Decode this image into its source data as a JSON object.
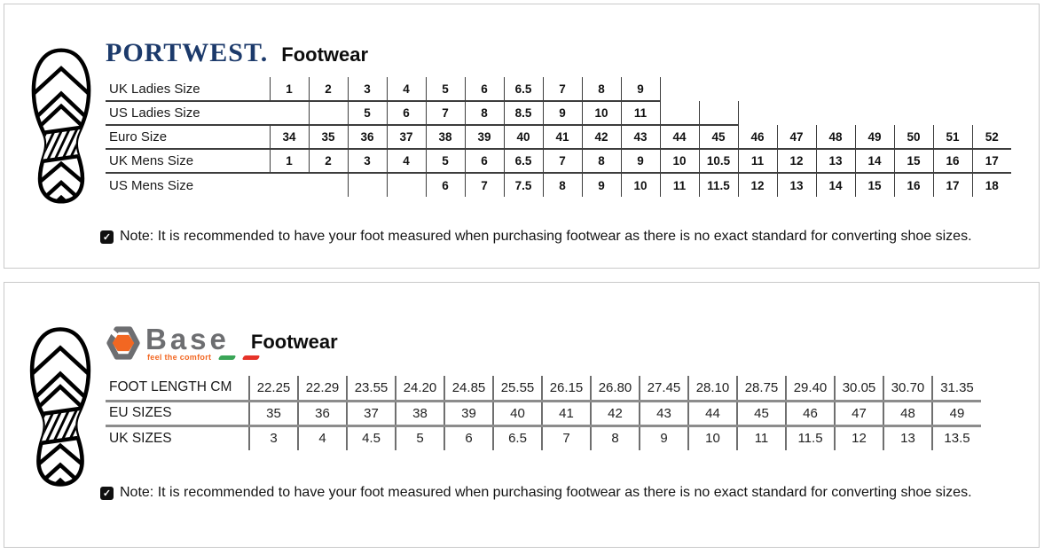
{
  "panels": [
    {
      "id": "portwest",
      "brand": "PORTWEST.",
      "product_line": "Footwear",
      "brand_color": "#1c3a6b",
      "note": "Note: It is recommended to have your foot measured when purchasing footwear as there is no exact standard for converting shoe sizes.",
      "table": {
        "columns": 19,
        "rows": [
          {
            "label": "UK Ladies Size",
            "cells": [
              "1",
              "2",
              "3",
              "4",
              "5",
              "6",
              "6.5",
              "7",
              "8",
              "9"
            ],
            "bordered_from": 1,
            "bordered_to": 10,
            "underline_to": 10
          },
          {
            "label": "US Ladies Size",
            "cells": [
              "",
              "",
              "5",
              "6",
              "7",
              "8",
              "8.5",
              "9",
              "10",
              "11",
              "",
              ""
            ],
            "bordered_from": 1,
            "bordered_to": 12,
            "underline_to": 12,
            "open_left": true
          },
          {
            "label": "Euro Size",
            "cells": [
              "34",
              "35",
              "36",
              "37",
              "38",
              "39",
              "40",
              "41",
              "42",
              "43",
              "44",
              "45",
              "46",
              "47",
              "48",
              "49",
              "50",
              "51",
              "52"
            ],
            "bordered_from": 1,
            "bordered_to": 19,
            "underline_to": 19
          },
          {
            "label": "UK Mens Size",
            "cells": [
              "1",
              "2",
              "3",
              "4",
              "5",
              "6",
              "6.5",
              "7",
              "8",
              "9",
              "10",
              "10.5",
              "11",
              "12",
              "13",
              "14",
              "15",
              "16",
              "17"
            ],
            "bordered_from": 1,
            "bordered_to": 19,
            "underline_to": 19
          },
          {
            "label": "US Mens Size",
            "cells": [
              "",
              "",
              "",
              "",
              "6",
              "7",
              "7.5",
              "8",
              "9",
              "10",
              "11",
              "11.5",
              "12",
              "13",
              "14",
              "15",
              "16",
              "17",
              "18"
            ],
            "bordered_from": 3,
            "bordered_to": 19,
            "underline_to": 0
          }
        ]
      }
    },
    {
      "id": "base",
      "brand": "Base",
      "tagline": "feel the comfort",
      "product_line": "Footwear",
      "brand_color": "#6d6e71",
      "accent_color": "#f26722",
      "flag_green": "#3aa557",
      "flag_red": "#e63329",
      "note": "Note: It is recommended to have your foot measured when purchasing footwear as there is no exact standard for converting shoe sizes.",
      "table": {
        "columns": 15,
        "rows": [
          {
            "label": "FOOT LENGTH CM",
            "cells": [
              "22.25",
              "22.29",
              "23.55",
              "24.20",
              "24.85",
              "25.55",
              "26.15",
              "26.80",
              "27.45",
              "28.10",
              "28.75",
              "29.40",
              "30.05",
              "30.70",
              "31.35"
            ],
            "bordered_from": 1,
            "bordered_to": 15,
            "underline_to": 15
          },
          {
            "label": "EU SIZES",
            "cells": [
              "35",
              "36",
              "37",
              "38",
              "39",
              "40",
              "41",
              "42",
              "43",
              "44",
              "45",
              "46",
              "47",
              "48",
              "49"
            ],
            "bordered_from": 1,
            "bordered_to": 15,
            "underline_to": 15
          },
          {
            "label": "UK SIZES",
            "cells": [
              "3",
              "4",
              "4.5",
              "5",
              "6",
              "6.5",
              "7",
              "8",
              "9",
              "10",
              "11",
              "11.5",
              "12",
              "13",
              "13.5"
            ],
            "bordered_from": 1,
            "bordered_to": 15,
            "underline_to": 0
          }
        ]
      }
    }
  ],
  "icons": {
    "note_check": "✓"
  }
}
